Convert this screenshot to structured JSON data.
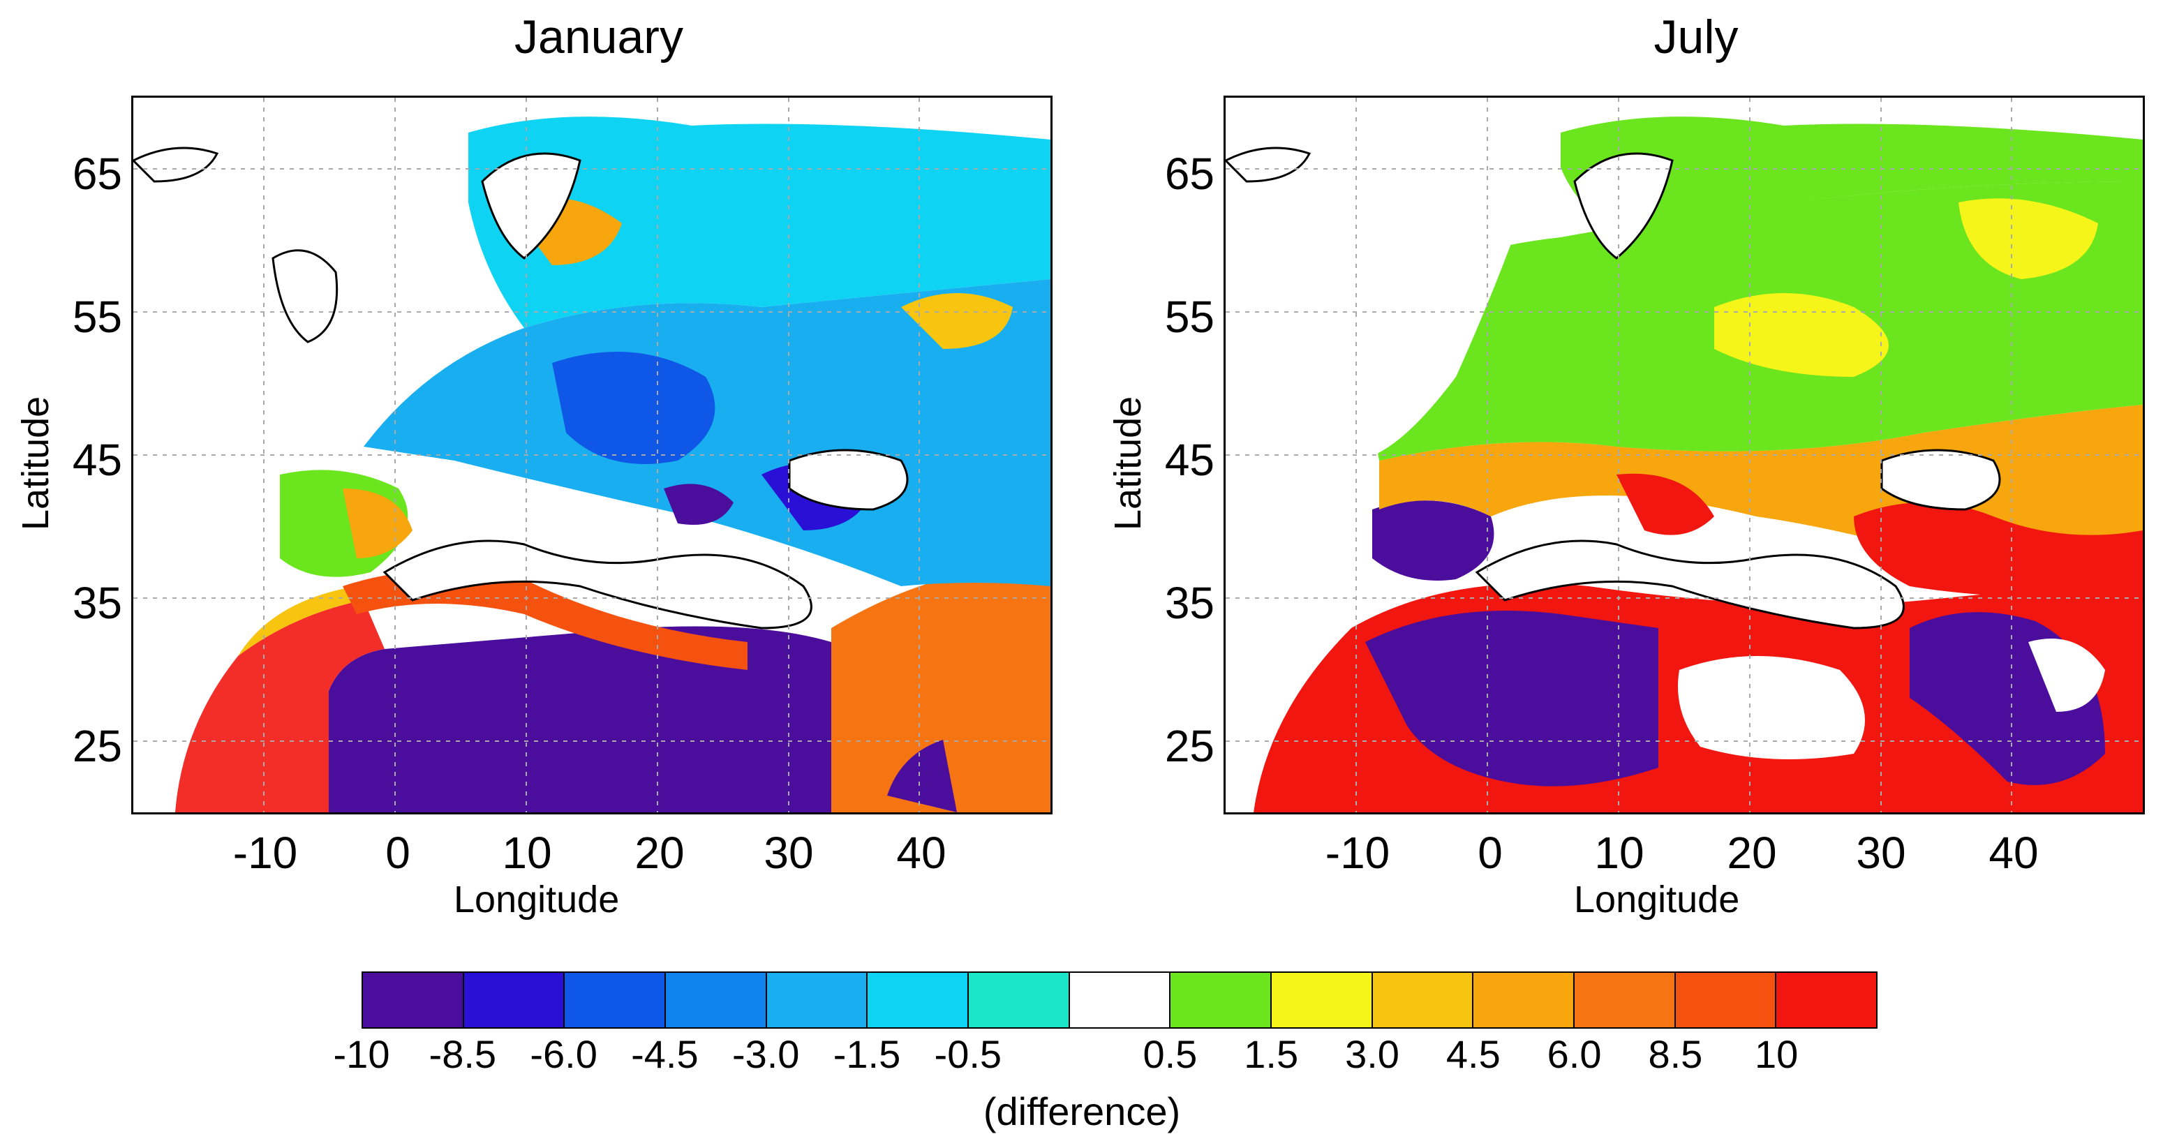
{
  "panels": [
    {
      "id": "jan",
      "title": "January"
    },
    {
      "id": "jul",
      "title": "July"
    }
  ],
  "axes": {
    "xlabel": "Longitude",
    "ylabel": "Latitude",
    "xticks": [
      "-10",
      "0",
      "10",
      "20",
      "30",
      "40"
    ],
    "yticks": [
      "65",
      "55",
      "45",
      "35",
      "25"
    ],
    "lon_range": [
      -20,
      50
    ],
    "lat_range": [
      20,
      70
    ]
  },
  "legend": {
    "caption": "(difference)",
    "colors": [
      "#4b0d9c",
      "#2a0fd6",
      "#0f57e6",
      "#0f84ee",
      "#18aeef",
      "#0fd3f2",
      "#1ce6c8",
      "#ffffff",
      "#6be61e",
      "#f5f51a",
      "#f7c510",
      "#f7a60d",
      "#f77412",
      "#f5520f",
      "#f21610"
    ],
    "tick_labels": [
      "-10",
      "-8.5",
      "-6.0",
      "-4.5",
      "-3.0",
      "-1.5",
      "-0.5",
      "0.5",
      "1.5",
      "3.0",
      "4.5",
      "6.0",
      "8.5",
      "10"
    ]
  }
}
